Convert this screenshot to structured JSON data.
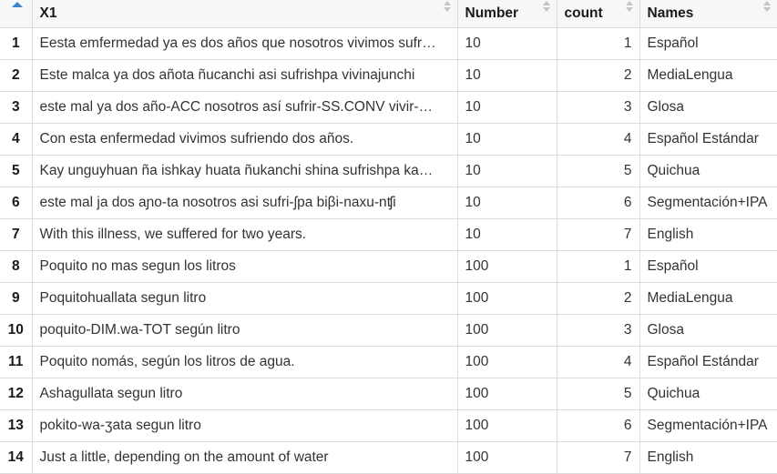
{
  "columns": {
    "x1": "X1",
    "number": "Number",
    "count": "count",
    "names": "Names"
  },
  "rows": [
    {
      "idx": "1",
      "x1": "Eesta emfermedad ya es dos años que nosotros vivimos sufr…",
      "number": "10",
      "count": "1",
      "names": "Español"
    },
    {
      "idx": "2",
      "x1": "Este malca ya dos añota ñucanchi asi sufrishpa vivinajunchi",
      "number": "10",
      "count": "2",
      "names": "MediaLengua"
    },
    {
      "idx": "3",
      "x1": "este mal ya dos año-ACC nosotros así sufrir-SS.CONV vivir-…",
      "number": "10",
      "count": "3",
      "names": "Glosa"
    },
    {
      "idx": "4",
      "x1": "Con esta enfermedad vivimos sufriendo dos años.",
      "number": "10",
      "count": "4",
      "names": "Español Estándar"
    },
    {
      "idx": "5",
      "x1": "Kay unguyhuan ña ishkay huata ñukanchi shina sufrishpa ka…",
      "number": "10",
      "count": "5",
      "names": "Quichua"
    },
    {
      "idx": "6",
      "x1": "este mal ja dos aɲo-ta nosotros asi sufri-ʃpa biβi-naxu-nʧi",
      "number": "10",
      "count": "6",
      "names": "Segmentación+IPA"
    },
    {
      "idx": "7",
      "x1": "With this illness, we suffered for two years.",
      "number": "10",
      "count": "7",
      "names": "English"
    },
    {
      "idx": "8",
      "x1": "Poquito no mas segun los litros",
      "number": "100",
      "count": "1",
      "names": "Español"
    },
    {
      "idx": "9",
      "x1": "Poquitohuallata segun litro",
      "number": "100",
      "count": "2",
      "names": "MediaLengua"
    },
    {
      "idx": "10",
      "x1": "poquito-DIM.wa-TOT según litro",
      "number": "100",
      "count": "3",
      "names": "Glosa"
    },
    {
      "idx": "11",
      "x1": "Poquito nomás, según los litros de agua.",
      "number": "100",
      "count": "4",
      "names": "Español Estándar"
    },
    {
      "idx": "12",
      "x1": "Ashagullata segun litro",
      "number": "100",
      "count": "5",
      "names": "Quichua"
    },
    {
      "idx": "13",
      "x1": "pokito-wa-ʒata segun litro",
      "number": "100",
      "count": "6",
      "names": "Segmentación+IPA"
    },
    {
      "idx": "14",
      "x1": "Just a little, depending on the amount of water",
      "number": "100",
      "count": "7",
      "names": "English"
    }
  ]
}
